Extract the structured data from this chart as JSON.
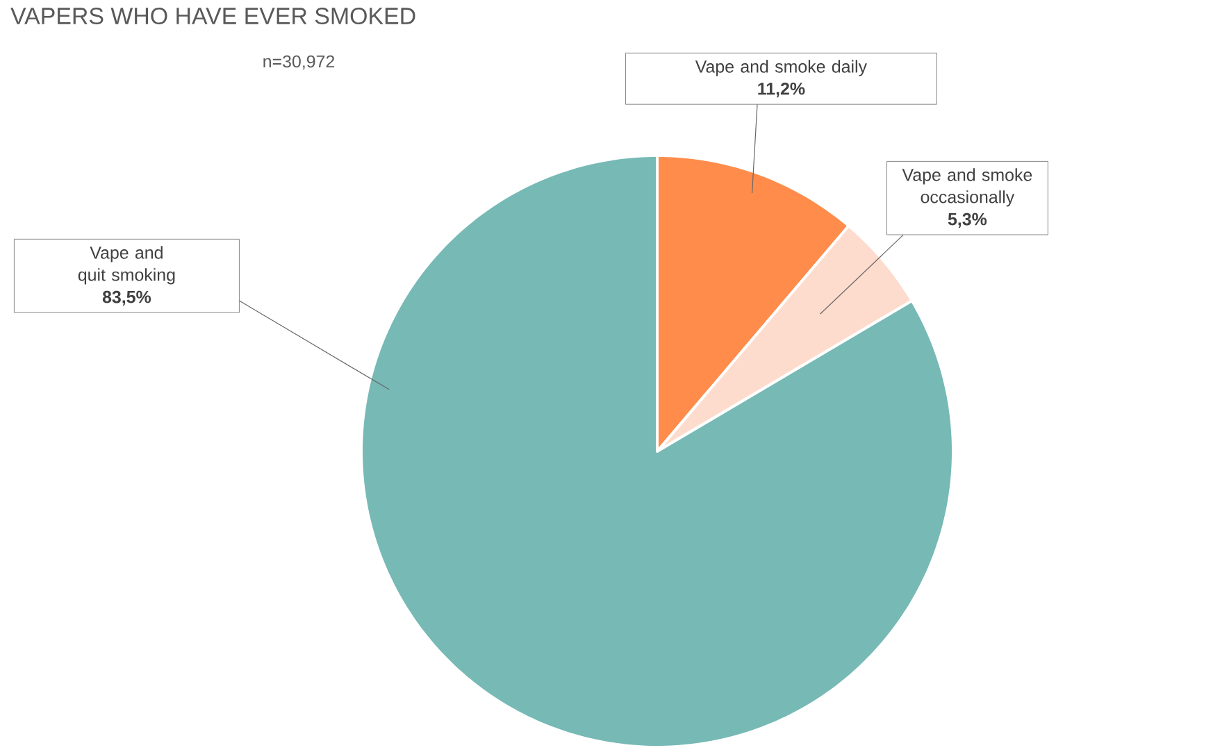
{
  "chart_data": {
    "type": "pie",
    "title": "VAPERS WHO HAVE EVER SMOKED",
    "subtitle": "n=30,972",
    "categories": [
      "Vape and smoke daily",
      "Vape and smoke occasionally",
      "Vape and quit smoking"
    ],
    "values": [
      11.2,
      5.3,
      83.5
    ],
    "value_labels": [
      "11,2%",
      "5,3%",
      "83,5%"
    ],
    "colors": [
      "#ff8c4b",
      "#fddccd",
      "#76b9b5"
    ]
  }
}
